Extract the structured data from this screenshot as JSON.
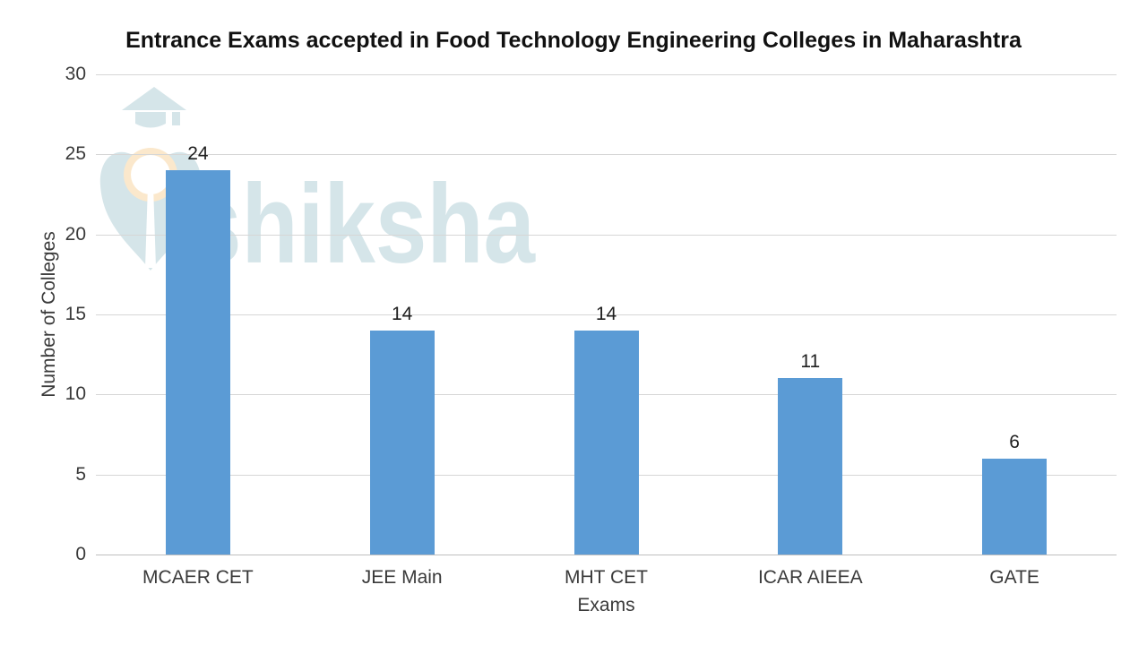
{
  "chart_data": {
    "type": "bar",
    "title": "Entrance Exams accepted in Food Technology Engineering Colleges in Maharashtra",
    "categories": [
      "MCAER CET",
      "JEE Main",
      "MHT CET",
      "ICAR AIEEA",
      "GATE"
    ],
    "values": [
      24,
      14,
      14,
      11,
      6
    ],
    "xlabel": "Exams",
    "ylabel": "Number of Colleges",
    "ylim": [
      0,
      30
    ],
    "yticks": [
      0,
      5,
      10,
      15,
      20,
      25,
      30
    ],
    "grid": true,
    "legend": false,
    "data_labels": true,
    "bar_color": "#5B9BD5",
    "gridline_color": "#D6D6D6",
    "axis_line_color": "#BFBFBF",
    "title_color": "#111111",
    "label_color": "#3A3A3A",
    "value_label_color": "#1F1F1F"
  },
  "watermark": {
    "text": "shiksha",
    "logo": "shiksha-graduation-cap-pen-nib",
    "color": "#D5E5E9",
    "accent_color": "#FBE8CC"
  }
}
